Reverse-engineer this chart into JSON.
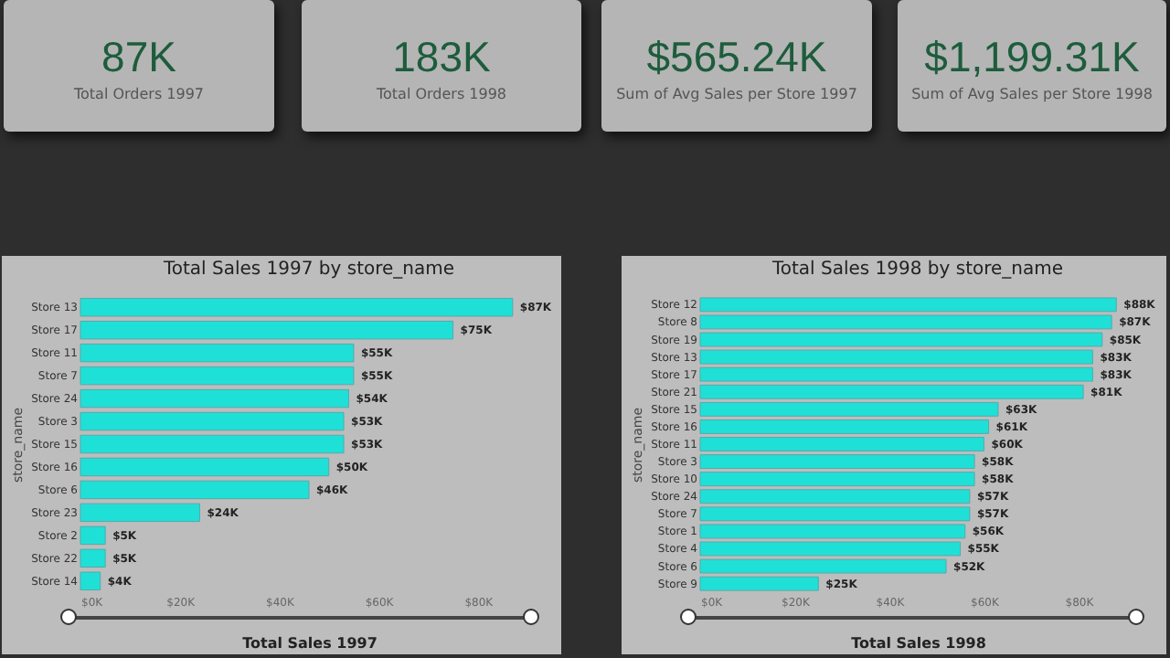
{
  "chart_data": [
    {
      "type": "other",
      "annotations": [
        "87K",
        "Total Orders 1997"
      ]
    },
    {
      "type": "other",
      "annotations": [
        "183K",
        "Total Orders 1998"
      ]
    },
    {
      "type": "other",
      "annotations": [
        "$565.24K",
        "Sum of Avg Sales per Store 1997"
      ]
    },
    {
      "type": "other",
      "annotations": [
        "$1,199.31K",
        "Sum of Avg Sales per Store 1998"
      ]
    },
    {
      "type": "bar",
      "orientation": "horizontal",
      "title": "Total Sales 1997 by store_name",
      "xlabel": "Total Sales 1997",
      "ylabel": "store_name",
      "categories": [
        "Store 13",
        "Store 17",
        "Store 11",
        "Store 7",
        "Store 24",
        "Store 3",
        "Store 15",
        "Store 16",
        "Store 6",
        "Store 23",
        "Store 2",
        "Store 22",
        "Store 14"
      ],
      "values": [
        87000,
        75000,
        55000,
        55000,
        54000,
        53000,
        53000,
        50000,
        46000,
        24000,
        5000,
        5000,
        4000
      ],
      "value_labels": [
        "$87K",
        "$75K",
        "$55K",
        "$55K",
        "$54K",
        "$53K",
        "$53K",
        "$50K",
        "$46K",
        "$24K",
        "$5K",
        "$5K",
        "$4K"
      ],
      "color": "#1fe0d6",
      "xlim": [
        0,
        92000
      ],
      "xticks": [
        {
          "value": 0,
          "label": "$0K"
        },
        {
          "value": 20000,
          "label": "$20K"
        },
        {
          "value": 40000,
          "label": "$40K"
        },
        {
          "value": 60000,
          "label": "$60K"
        },
        {
          "value": 80000,
          "label": "$80K"
        }
      ]
    },
    {
      "type": "bar",
      "orientation": "horizontal",
      "title": "Total Sales 1998 by store_name",
      "xlabel": "Total Sales 1998",
      "ylabel": "store_name",
      "categories": [
        "Store 12",
        "Store 8",
        "Store 19",
        "Store 13",
        "Store 17",
        "Store 21",
        "Store 15",
        "Store 16",
        "Store 11",
        "Store 3",
        "Store 10",
        "Store 24",
        "Store 7",
        "Store 1",
        "Store 4",
        "Store 6",
        "Store 9"
      ],
      "values": [
        88000,
        87000,
        85000,
        83000,
        83000,
        81000,
        63000,
        61000,
        60000,
        58000,
        58000,
        57000,
        57000,
        56000,
        55000,
        52000,
        25000
      ],
      "value_labels": [
        "$88K",
        "$87K",
        "$85K",
        "$83K",
        "$83K",
        "$81K",
        "$63K",
        "$61K",
        "$60K",
        "$58K",
        "$58K",
        "$57K",
        "$57K",
        "$56K",
        "$55K",
        "$52K",
        "$25K"
      ],
      "color": "#1fe0d6",
      "xlim": [
        0,
        92000
      ],
      "xticks": [
        {
          "value": 0,
          "label": "$0K"
        },
        {
          "value": 20000,
          "label": "$20K"
        },
        {
          "value": 40000,
          "label": "$40K"
        },
        {
          "value": 60000,
          "label": "$60K"
        },
        {
          "value": 80000,
          "label": "$80K"
        }
      ]
    }
  ]
}
